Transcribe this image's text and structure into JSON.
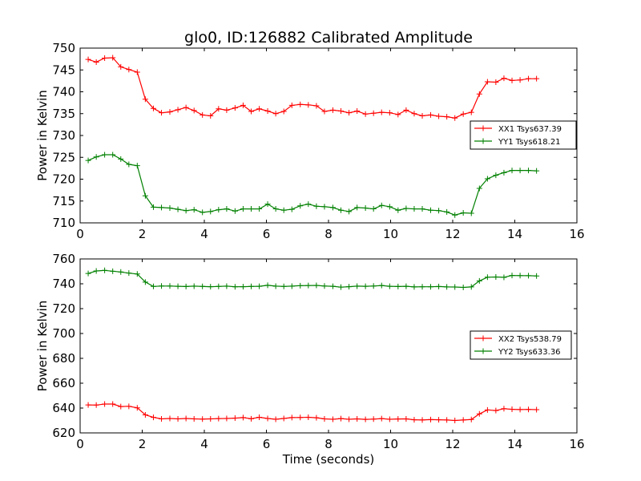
{
  "figure": {
    "title": "glo0, ID:126882 Calibrated Amplitude",
    "xlabel": "Time (seconds)"
  },
  "chart_data": [
    {
      "type": "line",
      "title": "glo0, ID:126882 Calibrated Amplitude",
      "xlabel": "",
      "ylabel": "Power in Kelvin",
      "xlim": [
        0,
        16
      ],
      "ylim": [
        710,
        750
      ],
      "xticks": [
        0,
        2,
        4,
        6,
        8,
        10,
        12,
        14,
        16
      ],
      "yticks": [
        710,
        715,
        720,
        725,
        730,
        735,
        740,
        745,
        750
      ],
      "grid": false,
      "legend_position": "center-right",
      "x": [
        0.26,
        0.52,
        0.79,
        1.05,
        1.31,
        1.57,
        1.84,
        2.1,
        2.36,
        2.62,
        2.89,
        3.15,
        3.41,
        3.67,
        3.94,
        4.2,
        4.46,
        4.72,
        4.99,
        5.25,
        5.51,
        5.77,
        6.04,
        6.3,
        6.56,
        6.82,
        7.09,
        7.35,
        7.61,
        7.87,
        8.14,
        8.4,
        8.66,
        8.92,
        9.19,
        9.45,
        9.71,
        9.97,
        10.24,
        10.5,
        10.76,
        11.02,
        11.29,
        11.55,
        11.81,
        12.07,
        12.34,
        12.6,
        12.86,
        13.12,
        13.39,
        13.65,
        13.91,
        14.17,
        14.44,
        14.7
      ],
      "series": [
        {
          "name": "XX1 Tsys637.39",
          "color": "#ff0000",
          "values": [
            747.4,
            746.8,
            747.7,
            747.8,
            745.7,
            745.1,
            744.5,
            738.3,
            736.2,
            735.2,
            735.4,
            735.9,
            736.4,
            735.7,
            734.7,
            734.5,
            736.1,
            735.8,
            736.3,
            736.9,
            735.5,
            736.1,
            735.6,
            735.0,
            735.5,
            736.9,
            737.1,
            737.0,
            736.8,
            735.5,
            735.8,
            735.6,
            735.2,
            735.6,
            734.9,
            735.1,
            735.3,
            735.2,
            734.8,
            735.8,
            735.0,
            734.5,
            734.7,
            734.4,
            734.3,
            734.0,
            734.9,
            735.3,
            739.5,
            742.3,
            742.2,
            743.1,
            742.6,
            742.7,
            743.0,
            743.0
          ]
        },
        {
          "name": "YY1 Tsys618.21",
          "color": "#008000",
          "values": [
            724.3,
            725.1,
            725.6,
            725.6,
            724.6,
            723.4,
            723.1,
            716.2,
            713.6,
            713.5,
            713.4,
            713.1,
            712.8,
            713.0,
            712.4,
            712.6,
            713.0,
            713.2,
            712.7,
            713.2,
            713.2,
            713.2,
            714.3,
            713.2,
            712.9,
            713.1,
            713.9,
            714.3,
            713.8,
            713.7,
            713.5,
            712.9,
            712.6,
            713.5,
            713.4,
            713.2,
            714.0,
            713.7,
            712.9,
            713.3,
            713.2,
            713.2,
            712.9,
            712.8,
            712.5,
            711.8,
            712.3,
            712.2,
            717.9,
            720.1,
            720.9,
            721.5,
            722.0,
            722.0,
            722.0,
            721.9
          ]
        }
      ]
    },
    {
      "type": "line",
      "title": "",
      "xlabel": "Time (seconds)",
      "ylabel": "Power in Kelvin",
      "xlim": [
        0,
        16
      ],
      "ylim": [
        620,
        760
      ],
      "xticks": [
        0,
        2,
        4,
        6,
        8,
        10,
        12,
        14,
        16
      ],
      "yticks": [
        620,
        640,
        660,
        680,
        700,
        720,
        740,
        760
      ],
      "grid": false,
      "legend_position": "center-right",
      "x": [
        0.26,
        0.52,
        0.79,
        1.05,
        1.31,
        1.57,
        1.84,
        2.1,
        2.36,
        2.62,
        2.89,
        3.15,
        3.41,
        3.67,
        3.94,
        4.2,
        4.46,
        4.72,
        4.99,
        5.25,
        5.51,
        5.77,
        6.04,
        6.3,
        6.56,
        6.82,
        7.09,
        7.35,
        7.61,
        7.87,
        8.14,
        8.4,
        8.66,
        8.92,
        9.19,
        9.45,
        9.71,
        9.97,
        10.24,
        10.5,
        10.76,
        11.02,
        11.29,
        11.55,
        11.81,
        12.07,
        12.34,
        12.6,
        12.86,
        13.12,
        13.39,
        13.65,
        13.91,
        14.17,
        14.44,
        14.7
      ],
      "series": [
        {
          "name": "XX2 Tsys538.79",
          "color": "#ff0000",
          "values": [
            642.5,
            642.4,
            643.2,
            643.2,
            641.2,
            641.4,
            640.2,
            634.5,
            632.5,
            631.3,
            631.6,
            631.3,
            631.6,
            631.3,
            631.1,
            631.3,
            631.5,
            631.6,
            631.9,
            632.3,
            631.4,
            632.6,
            631.6,
            631.0,
            631.6,
            632.3,
            632.4,
            632.6,
            632.2,
            631.3,
            631.0,
            631.5,
            631.0,
            631.3,
            630.9,
            631.1,
            631.5,
            631.0,
            631.2,
            631.3,
            630.6,
            630.4,
            630.7,
            630.6,
            630.4,
            630.0,
            630.4,
            630.8,
            635.3,
            638.5,
            638.0,
            639.5,
            639.0,
            638.8,
            638.9,
            638.7
          ]
        },
        {
          "name": "YY2 Tsys633.36",
          "color": "#008000",
          "values": [
            748.3,
            750.3,
            750.8,
            750.1,
            749.5,
            748.6,
            747.9,
            741.4,
            737.9,
            738.2,
            738.2,
            738.0,
            737.8,
            738.1,
            737.9,
            737.7,
            737.9,
            738.1,
            737.6,
            737.7,
            737.9,
            738.0,
            738.8,
            738.1,
            737.9,
            738.1,
            738.5,
            738.6,
            738.7,
            738.2,
            738.0,
            737.3,
            737.7,
            738.1,
            738.0,
            738.2,
            738.6,
            738.0,
            737.8,
            738.0,
            737.5,
            737.6,
            737.6,
            737.8,
            737.5,
            737.4,
            737.1,
            737.5,
            742.3,
            745.3,
            745.5,
            745.2,
            746.7,
            746.6,
            746.5,
            746.3
          ]
        }
      ]
    }
  ]
}
